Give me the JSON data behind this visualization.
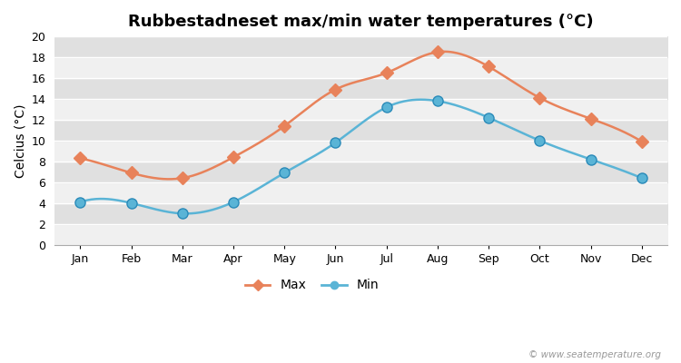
{
  "title": "Rubbestadneset max/min water temperatures (°C)",
  "ylabel": "Celcius (°C)",
  "months": [
    "Jan",
    "Feb",
    "Mar",
    "Apr",
    "May",
    "Jun",
    "Jul",
    "Aug",
    "Sep",
    "Oct",
    "Nov",
    "Dec"
  ],
  "max_temps": [
    8.3,
    6.9,
    6.4,
    8.4,
    11.4,
    14.9,
    16.5,
    18.5,
    17.1,
    14.1,
    12.1,
    9.9
  ],
  "min_temps": [
    4.1,
    4.0,
    3.0,
    4.1,
    6.9,
    9.8,
    13.2,
    13.8,
    12.2,
    10.0,
    8.2,
    6.4
  ],
  "max_color": "#e8825a",
  "min_color": "#5ab4d6",
  "fig_bg_color": "#ffffff",
  "plot_bg_color_light": "#f0f0f0",
  "plot_bg_color_dark": "#e0e0e0",
  "grid_color": "#ffffff",
  "ylim": [
    0,
    20
  ],
  "yticks": [
    0,
    2,
    4,
    6,
    8,
    10,
    12,
    14,
    16,
    18,
    20
  ],
  "watermark": "© www.seatemperature.org",
  "legend_max": "Max",
  "legend_min": "Min",
  "title_fontsize": 13,
  "axis_label_fontsize": 10,
  "tick_fontsize": 9,
  "legend_fontsize": 10,
  "line_width": 1.8,
  "marker_size_max": 7,
  "marker_size_min": 8
}
